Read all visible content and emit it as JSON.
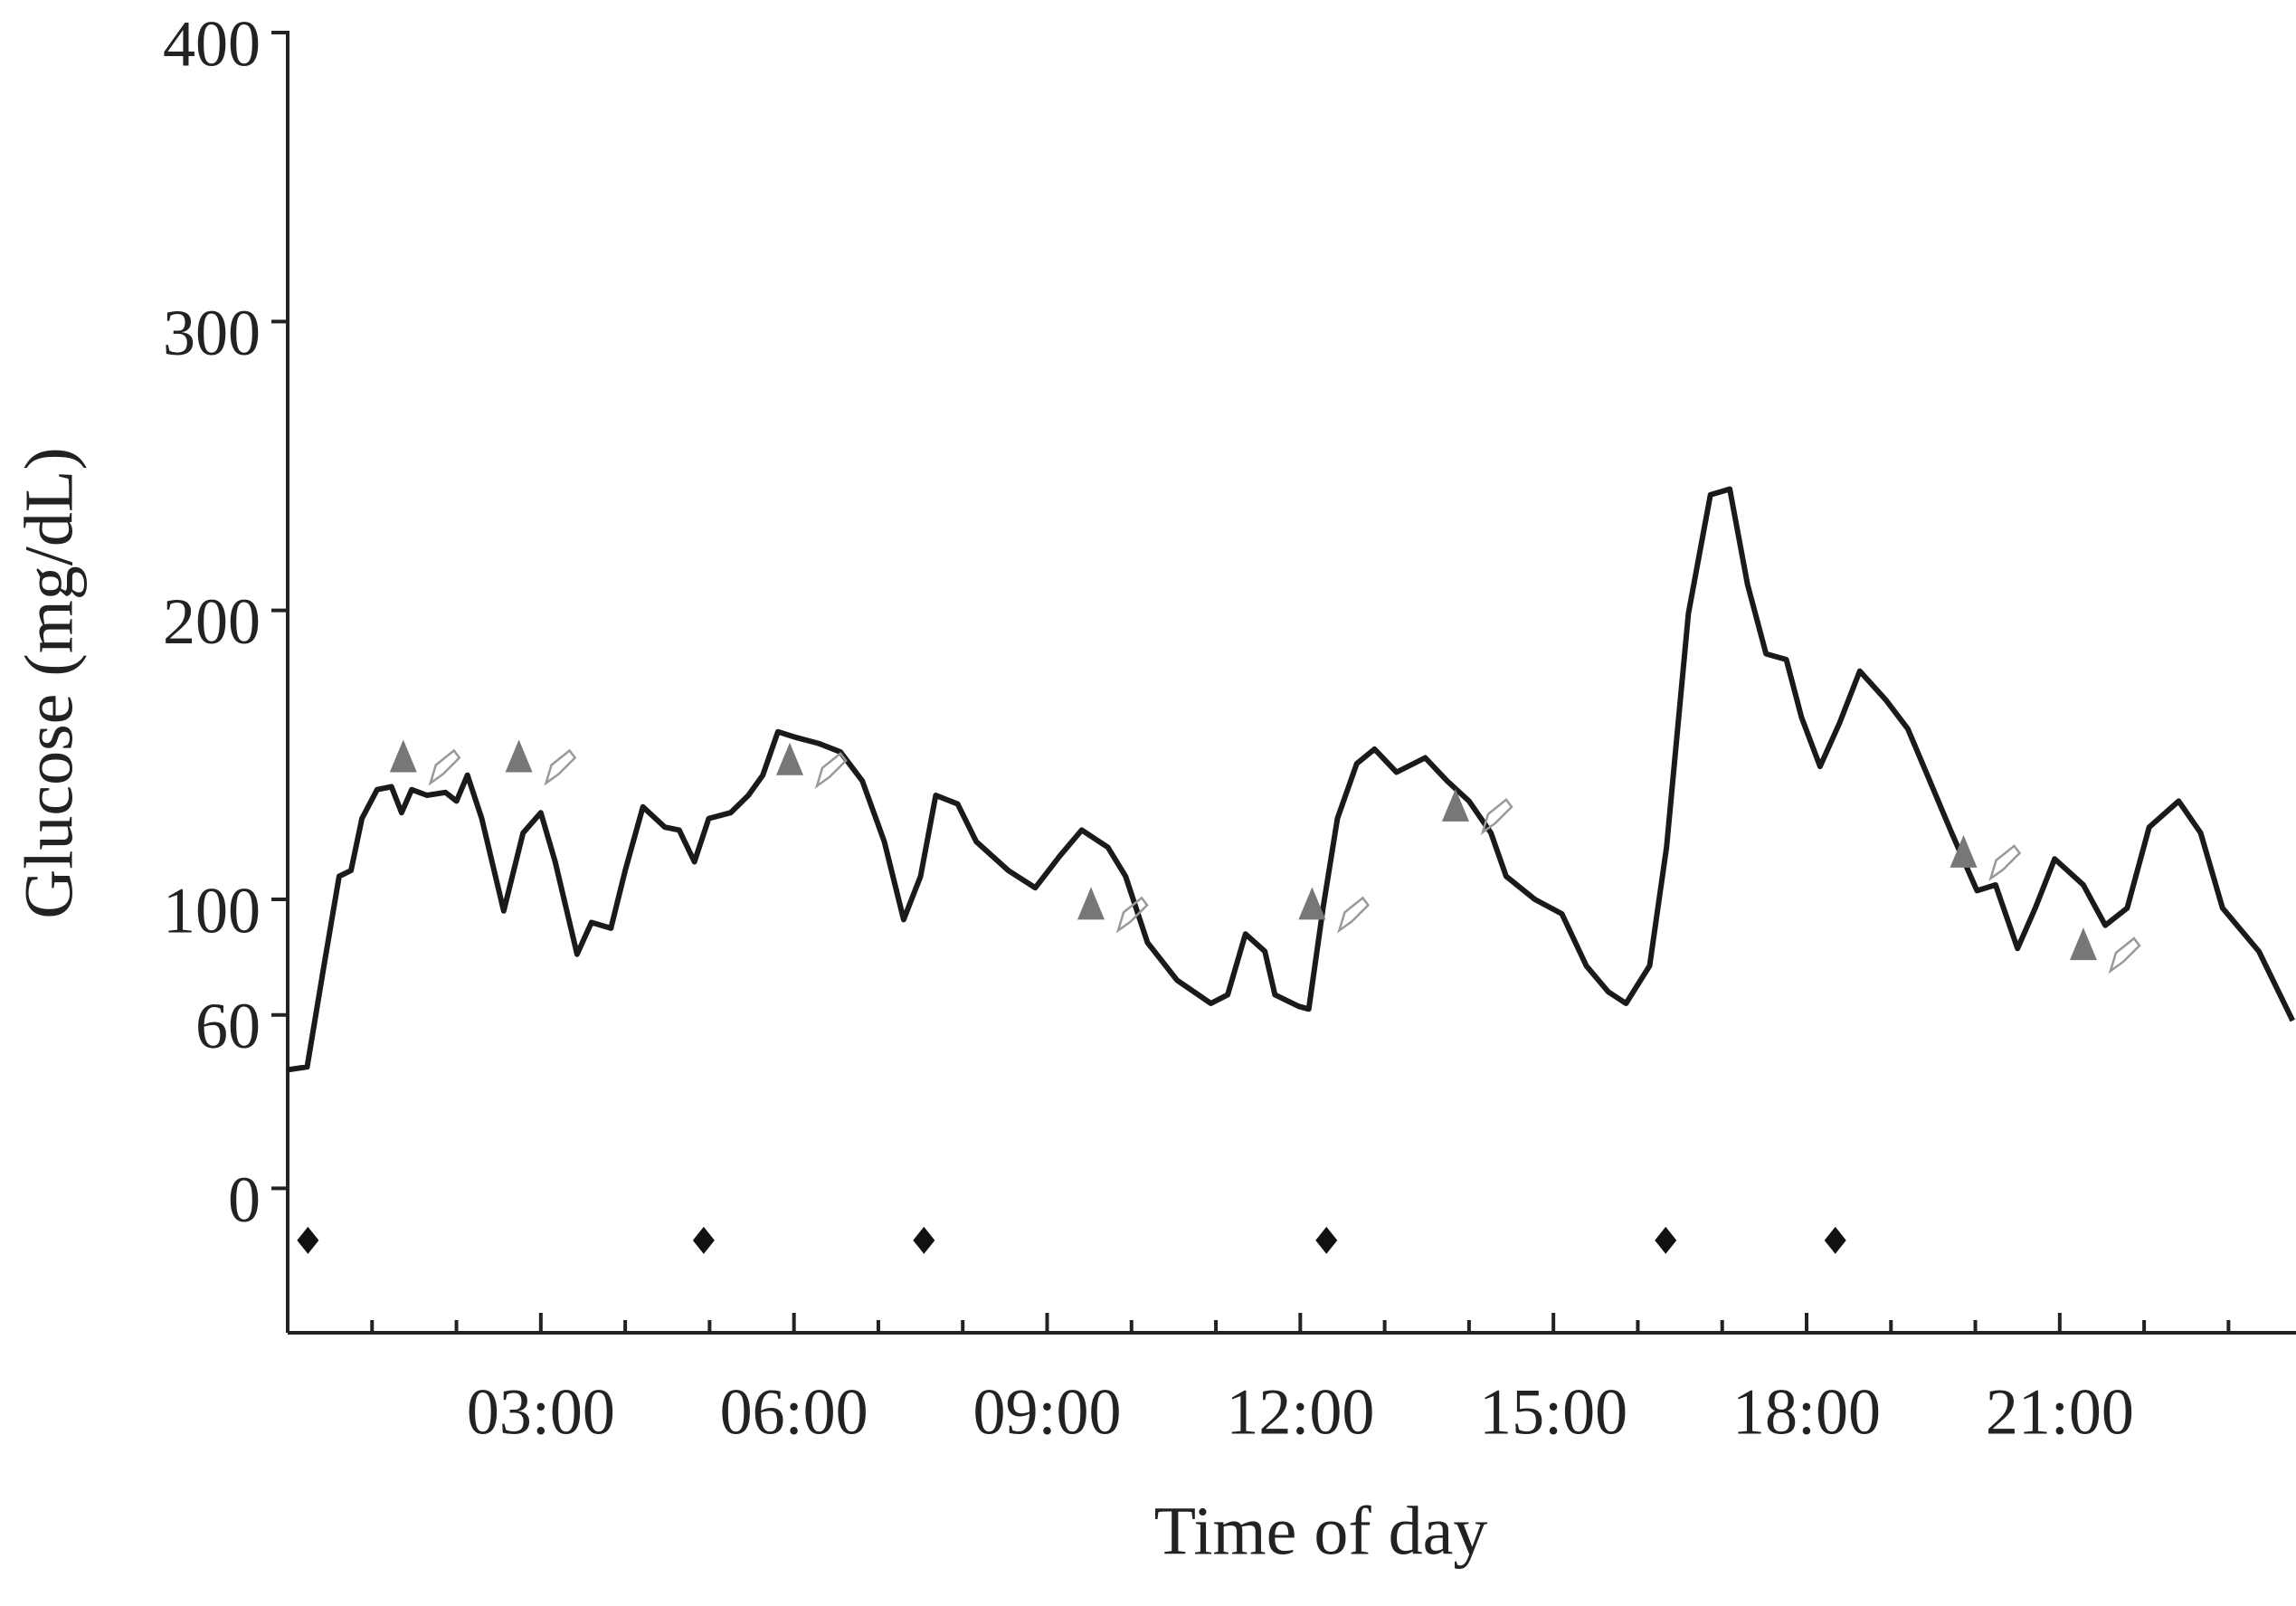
{
  "chart_data": {
    "type": "line",
    "x_label": "Time of day",
    "y_label": "Glucose (mg/dL)",
    "xlim": [
      0,
      23.8
    ],
    "ylim": [
      -50,
      400
    ],
    "xticks": [
      {
        "value": 3,
        "label": "03:00"
      },
      {
        "value": 6,
        "label": "06:00"
      },
      {
        "value": 9,
        "label": "09:00"
      },
      {
        "value": 12,
        "label": "12:00"
      },
      {
        "value": 15,
        "label": "15:00"
      },
      {
        "value": 18,
        "label": "18:00"
      },
      {
        "value": 21,
        "label": "21:00"
      }
    ],
    "xminorticks": [
      1,
      2,
      4,
      5,
      7,
      8,
      10,
      11,
      13,
      14,
      16,
      17,
      19,
      20,
      22,
      23
    ],
    "yticks": [
      0,
      60,
      100,
      200,
      300,
      400
    ],
    "grid": false,
    "series": [
      {
        "type": "line",
        "color": "#1a1a1a",
        "x": [
          0,
          0.23,
          0.43,
          0.61,
          0.75,
          0.88,
          1.06,
          1.23,
          1.35,
          1.47,
          1.65,
          1.87,
          2.0,
          2.13,
          2.3,
          2.56,
          2.79,
          3.0,
          3.17,
          3.43,
          3.6,
          3.83,
          4.0,
          4.21,
          4.47,
          4.64,
          4.82,
          4.99,
          5.25,
          5.46,
          5.63,
          5.81,
          6.03,
          6.29,
          6.55,
          6.81,
          7.07,
          7.3,
          7.5,
          7.68,
          7.94,
          8.16,
          8.54,
          8.86,
          9.15,
          9.41,
          9.72,
          9.93,
          10.19,
          10.54,
          10.94,
          11.14,
          11.35,
          11.58,
          11.7,
          11.98,
          12.1,
          12.27,
          12.44,
          12.67,
          12.88,
          13.14,
          13.48,
          13.74,
          14.0,
          14.26,
          14.44,
          14.78,
          15.1,
          15.39,
          15.65,
          15.86,
          16.14,
          16.34,
          16.6,
          16.86,
          17.09,
          17.3,
          17.52,
          17.76,
          17.94,
          18.16,
          18.39,
          18.63,
          18.94,
          19.2,
          19.46,
          19.72,
          20.02,
          20.24,
          20.5,
          20.71,
          20.94,
          21.28,
          21.54,
          21.8,
          22.06,
          22.41,
          22.67,
          22.93,
          23.36,
          23.76
        ],
        "values": [
          41,
          42,
          77,
          108,
          110,
          128,
          138,
          139,
          130,
          138,
          136,
          137,
          134,
          143,
          128,
          96,
          123,
          130,
          113,
          81,
          92,
          90,
          110,
          132,
          125,
          124,
          113,
          128,
          130,
          136,
          143,
          158,
          156,
          154,
          151,
          141,
          120,
          93,
          108,
          136,
          133,
          120,
          110,
          104,
          115,
          124,
          118,
          108,
          85,
          72,
          64,
          67,
          88,
          82,
          67,
          63,
          62,
          97,
          128,
          147,
          152,
          144,
          149,
          141,
          134,
          123,
          108,
          100,
          95,
          77,
          68,
          64,
          77,
          118,
          199,
          240,
          242,
          209,
          185,
          183,
          163,
          146,
          161,
          179,
          169,
          159,
          141,
          123,
          103,
          105,
          83,
          97,
          114,
          105,
          91,
          97,
          125,
          134,
          123,
          97,
          82,
          58
        ]
      },
      {
        "type": "scatter",
        "marker": "triangle",
        "color": "#777777",
        "x": [
          1.37,
          2.74,
          5.95,
          9.52,
          12.14,
          13.84,
          19.86,
          21.28
        ],
        "values": [
          149,
          149,
          148,
          98,
          98,
          132,
          116,
          84
        ]
      },
      {
        "type": "scatter",
        "marker": "diamond",
        "color": "#111111",
        "x": [
          0.24,
          4.93,
          7.54,
          12.31,
          16.33,
          18.34
        ],
        "values": [
          -18,
          -18,
          -18,
          -18,
          -18,
          -18
        ]
      }
    ]
  }
}
